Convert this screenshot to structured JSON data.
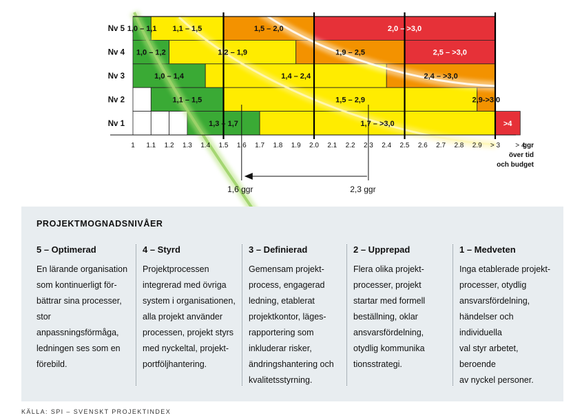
{
  "chart_data": {
    "type": "heatmap",
    "levels": [
      "Nv 1",
      "Nv 2",
      "Nv 3",
      "Nv 4",
      "Nv 5"
    ],
    "x_ticks": [
      "1",
      "1.1",
      "1.2",
      "1.3",
      "1.4",
      "1.5",
      "1.6",
      "1.7",
      "1.8",
      "1.9",
      "2.0",
      "2.1",
      "2.2",
      "2.3",
      "2.4",
      "2.5",
      "2.6",
      "2.7",
      "2.8",
      "2.9",
      "> 3",
      "> 4"
    ],
    "x_unit_lines": [
      "ggr",
      "över tid",
      "och budget"
    ],
    "segments": {
      "Nv 5": [
        {
          "from": "1.0",
          "to": "1.1",
          "color": "green",
          "label": "1,0 – 1,1"
        },
        {
          "from": "1.1",
          "to": "1.5",
          "color": "yellow",
          "label": "1,1 – 1,5"
        },
        {
          "from": "1.5",
          "to": "2.0",
          "color": "orange",
          "label": "1,5 – 2,0"
        },
        {
          "from": "2.0",
          "to": "> 3",
          "color": "red",
          "label": "2,0 – >3,0"
        }
      ],
      "Nv 4": [
        {
          "from": "1.0",
          "to": "1.2",
          "color": "green",
          "label": "1,0 – 1,2"
        },
        {
          "from": "1.2",
          "to": "1.9",
          "color": "yellow",
          "label": "1,2 – 1,9"
        },
        {
          "from": "1.9",
          "to": "2.5",
          "color": "orange",
          "label": "1,9 – 2,5"
        },
        {
          "from": "2.5",
          "to": "> 3",
          "color": "red",
          "label": "2,5 – >3,0"
        }
      ],
      "Nv 3": [
        {
          "from": "1.0",
          "to": "1.4",
          "color": "green",
          "label": "1,0 – 1,4"
        },
        {
          "from": "1.4",
          "to": "2.4",
          "color": "yellow",
          "label": "1,4 – 2,4"
        },
        {
          "from": "2.4",
          "to": "> 3",
          "color": "orange",
          "label": "2,4 – >3,0"
        }
      ],
      "Nv 2": [
        {
          "from": "1.0",
          "to": "1.1",
          "color": "white",
          "label": ""
        },
        {
          "from": "1.1",
          "to": "1.5",
          "color": "green",
          "label": "1,1 – 1,5"
        },
        {
          "from": "1.5",
          "to": "2.9",
          "color": "yellow",
          "label": "1,5 – 2,9"
        },
        {
          "from": "2.9",
          "to": "> 3",
          "color": "orange",
          "label": "2,9->3,0"
        }
      ],
      "Nv 1": [
        {
          "from": "1.0",
          "to": "1.1",
          "color": "white",
          "label": ""
        },
        {
          "from": "1.1",
          "to": "1.2",
          "color": "white",
          "label": ""
        },
        {
          "from": "1.2",
          "to": "1.3",
          "color": "white",
          "label": ""
        },
        {
          "from": "1.3",
          "to": "1.7",
          "color": "green",
          "label": "1,3 – 1,7"
        },
        {
          "from": "1.7",
          "to": "> 3",
          "color": "yellow",
          "label": "1,7 – >3,0"
        },
        {
          "from": "> 3",
          "to": "> 4",
          "color": "red",
          "label": ">4"
        }
      ]
    },
    "bold_vertical_lines_at": [
      "1.5",
      "2.0",
      "2.5",
      "> 3"
    ],
    "annotations": {
      "from_value": "2.3",
      "from_label": "2,3 ggr",
      "to_value": "1.6",
      "to_label": "1,6 ggr",
      "arrow_direction": "right-to-left"
    },
    "colors": {
      "green": "#3aaa35",
      "yellow": "#ffec00",
      "orange": "#f39200",
      "red": "#e63138",
      "white": "#ffffff"
    }
  },
  "panel": {
    "title": "PROJEKTMOGNADSNIVÅER",
    "columns": [
      {
        "title": "5 – Optimerad",
        "text": "En lärande organisation\nsom kontinuerligt för-\nbättrar sina processer,\nstor anpassningsförmåga,\nledningen ses som en\nförebild."
      },
      {
        "title": "4 – Styrd",
        "text": "Projektprocessen\nintegrerad med övriga\nsystem i organisationen,\nalla projekt använder\nprocessen, projekt styrs\nmed nyckeltal, projekt-\nportföljhantering."
      },
      {
        "title": "3 – Definierad",
        "text": "Gemensam projekt-\nprocess, engagerad\nledning, etablerat\nprojektkontor, läges-\nrapportering som\ninkluderar risker,\nändringshantering och\nkvalitetsstyrning."
      },
      {
        "title": "2 – Upprepad",
        "text": "Flera olika projekt-\nprocesser, projekt\nstartar med formell\nbeställning, oklar\nansvarsfördelning,\notydlig kommunika\ntionsstrategi."
      },
      {
        "title": "1 – Medveten",
        "text": "Inga etablerade projekt-\nprocesser, otydlig\nansvarsfördelning,\nhändelser och individuella\nval styr arbetet, beroende\nav nyckel personer."
      }
    ]
  },
  "source": "KÄLLA: SPI – SVENSKT PROJEKTINDEX"
}
